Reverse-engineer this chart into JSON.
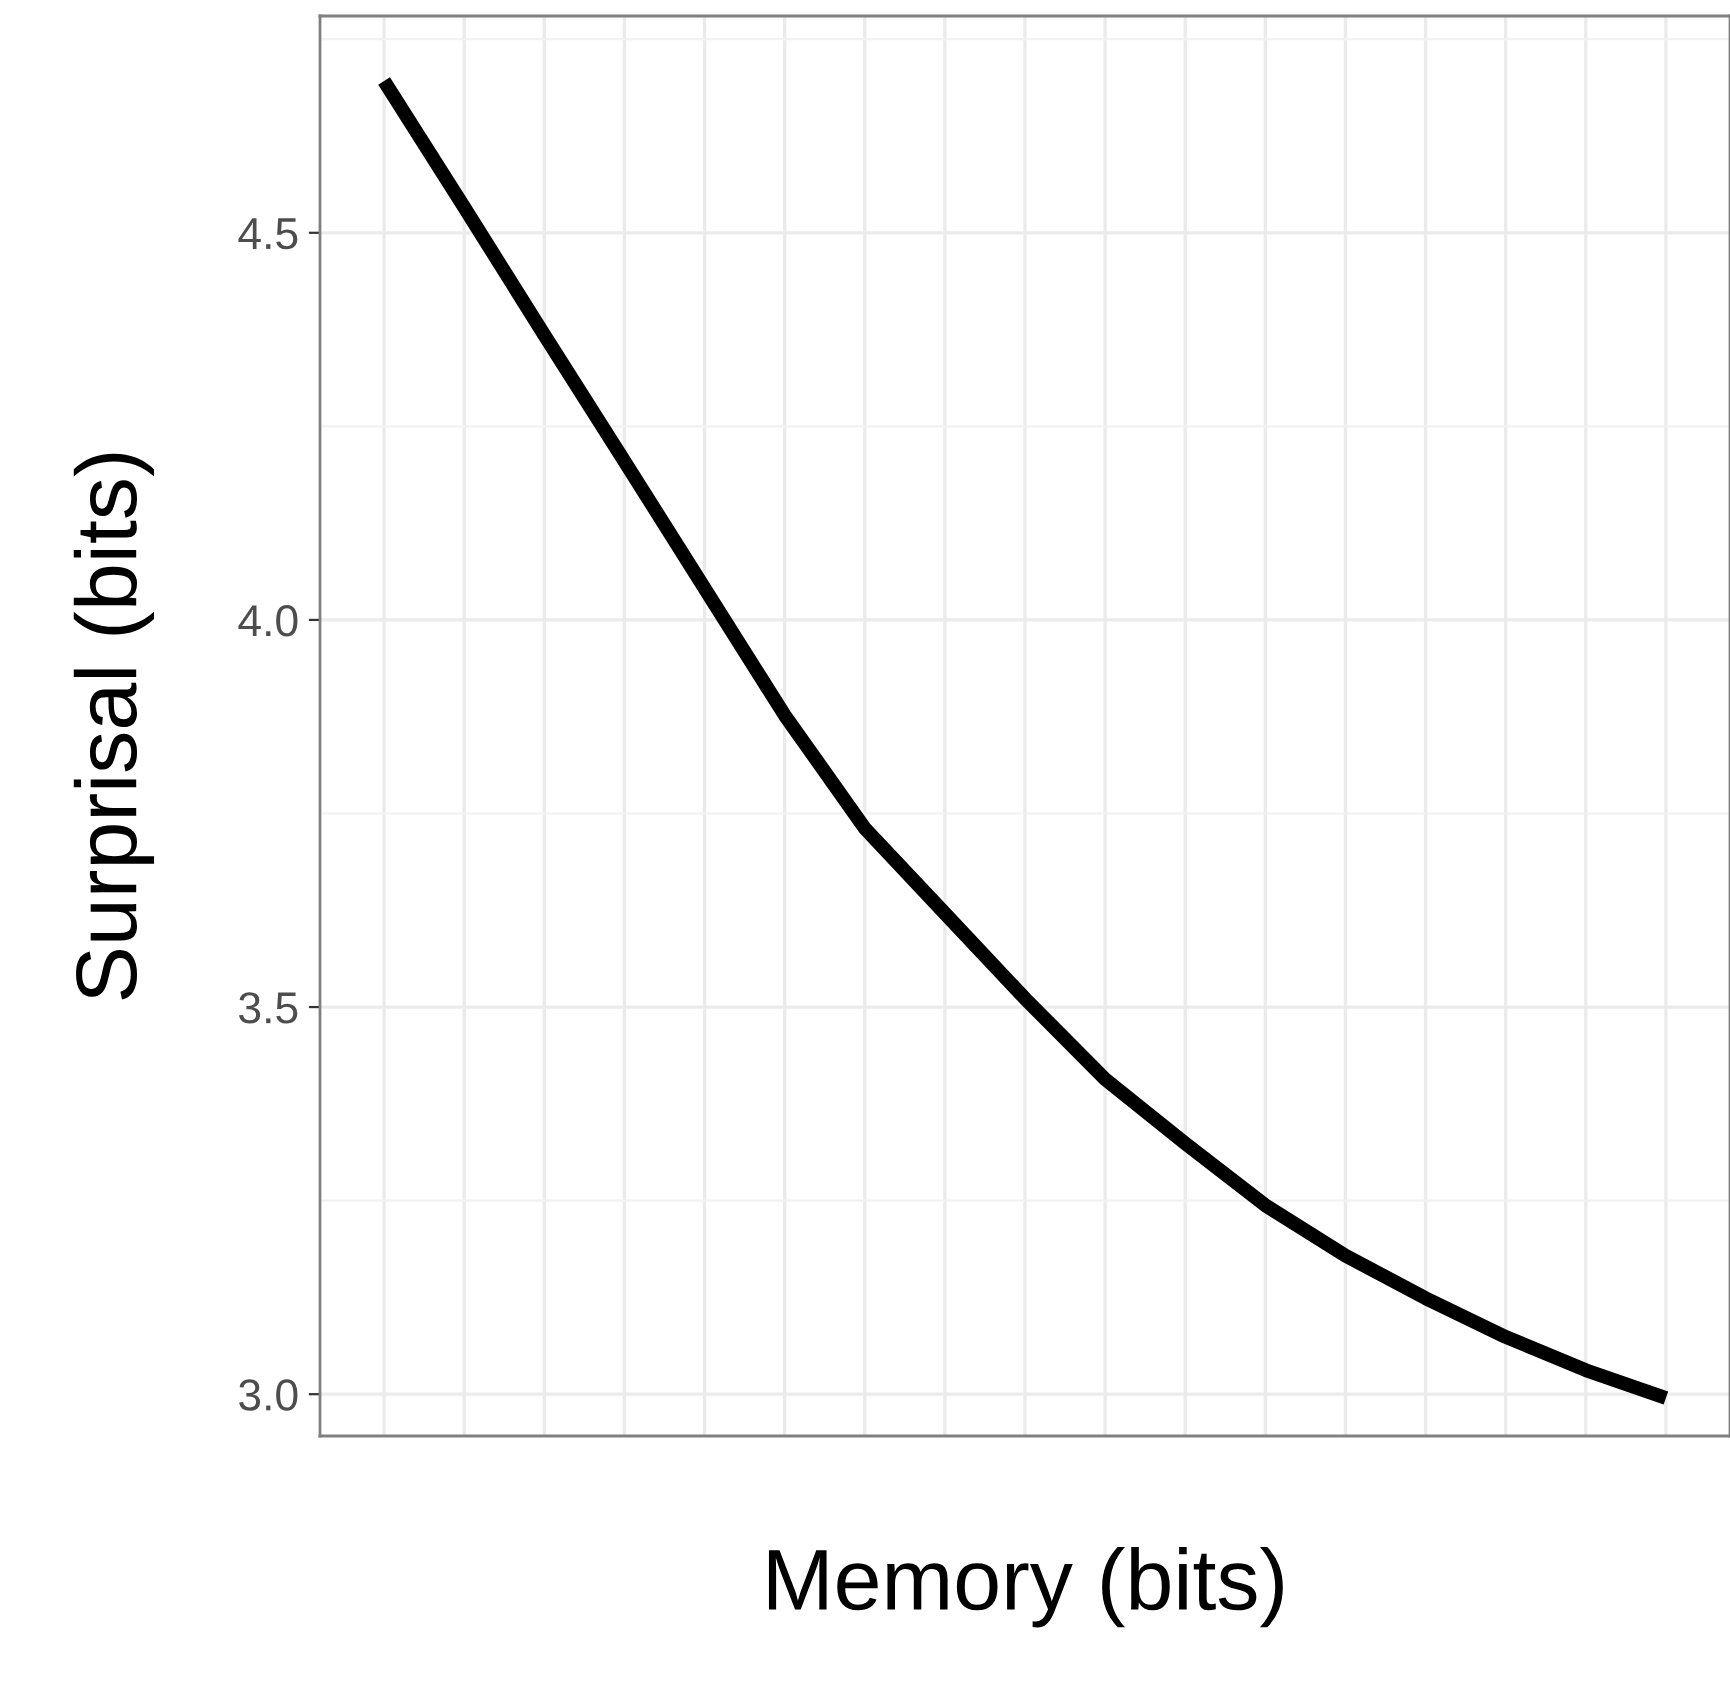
{
  "chart_data": {
    "type": "line",
    "xlabel": "Memory (bits)",
    "ylabel": "Surprisal (bits)",
    "categories": [
      null,
      null,
      null,
      null,
      null,
      null,
      null,
      null,
      null,
      null,
      null,
      null,
      null,
      null,
      null,
      null,
      null
    ],
    "series": [
      {
        "color": "#000000",
        "values": [
          4.696,
          4.533,
          4.368,
          4.205,
          4.041,
          3.877,
          3.731,
          3.621,
          3.511,
          3.407,
          3.324,
          3.244,
          3.179,
          3.124,
          3.074,
          3.031,
          2.995
        ]
      }
    ],
    "ylim": [
      2.946,
      4.78
    ],
    "yticks": [
      {
        "value": 3,
        "label": "3.0"
      },
      {
        "value": 3.5,
        "label": "3.5"
      },
      {
        "value": 4,
        "label": "4.0"
      },
      {
        "value": 4.5,
        "label": "4.5"
      }
    ],
    "grid": true,
    "tick_labels": "y",
    "legend": false
  }
}
